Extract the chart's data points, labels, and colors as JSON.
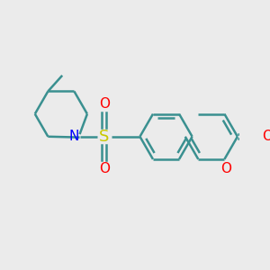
{
  "background_color": "#ebebeb",
  "bond_color": "#3a9090",
  "N_color": "#0000ff",
  "S_color": "#c8c800",
  "O_color": "#ff0000",
  "line_width": 1.8,
  "figsize": [
    3.0,
    3.0
  ],
  "dpi": 100,
  "xlim": [
    0,
    300
  ],
  "ylim": [
    0,
    300
  ]
}
